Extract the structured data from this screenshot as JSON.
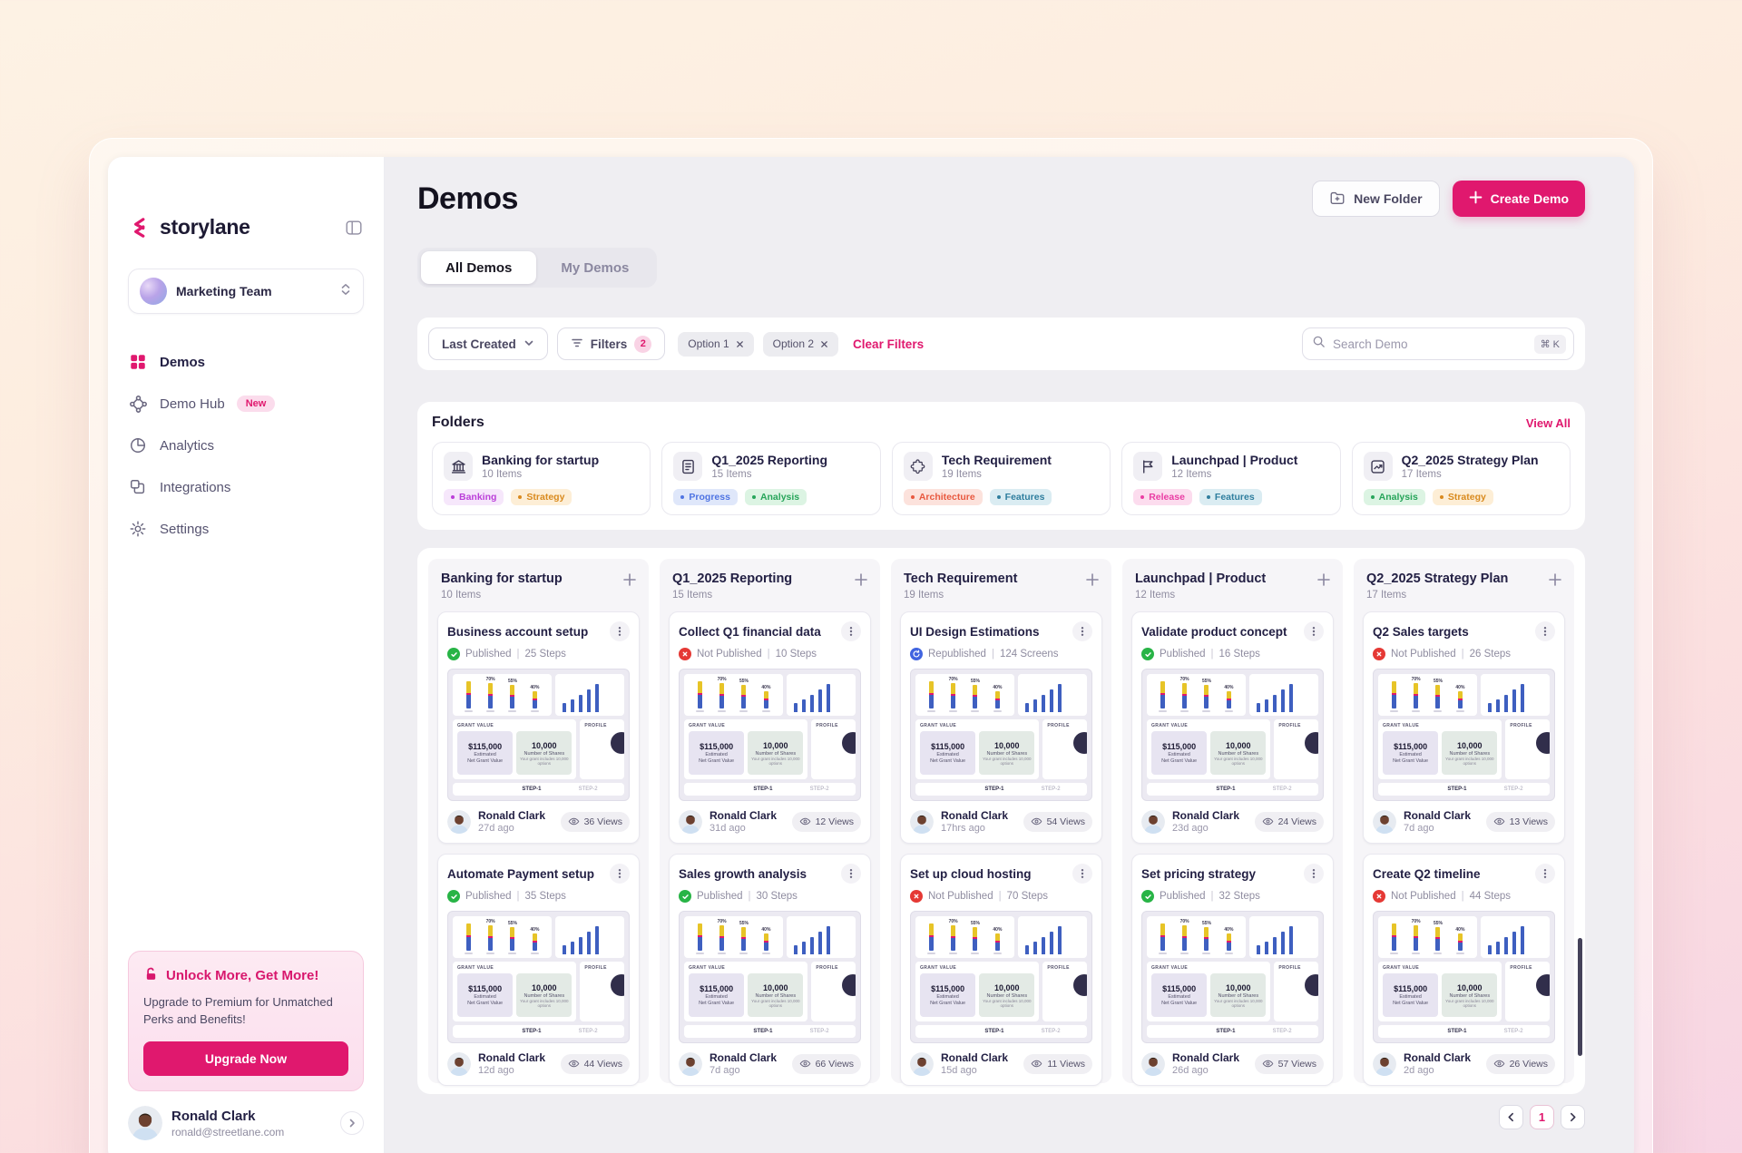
{
  "theme": {
    "accent": "#e0186e",
    "text_dark": "#232044",
    "main_bg": "#efeef2"
  },
  "ui": {
    "divider": "|"
  },
  "sidebar": {
    "logo_text": "storylane",
    "workspace": {
      "name": "Marketing Team"
    },
    "items": [
      {
        "label": "Demos",
        "icon": "grid",
        "active": true
      },
      {
        "label": "Demo Hub",
        "icon": "hub",
        "badge": "New"
      },
      {
        "label": "Analytics",
        "icon": "pie"
      },
      {
        "label": "Integrations",
        "icon": "blocks"
      },
      {
        "label": "Settings",
        "icon": "gear"
      }
    ],
    "upgrade": {
      "title": "Unlock More, Get More!",
      "body": "Upgrade to Premium for Unmatched Perks and Benefits!",
      "cta": "Upgrade Now"
    },
    "user": {
      "name": "Ronald Clark",
      "email": "ronald@streetlane.com"
    }
  },
  "header": {
    "title": "Demos",
    "new_folder": "New Folder",
    "create_demo": "Create Demo"
  },
  "tabs": [
    {
      "label": "All Demos",
      "active": true
    },
    {
      "label": "My Demos",
      "active": false
    }
  ],
  "toolbar": {
    "sort": "Last Created",
    "filters_label": "Filters",
    "filters_count": "2",
    "chips": [
      "Option 1",
      "Option 2"
    ],
    "clear": "Clear Filters",
    "search_placeholder": "Search Demo",
    "search_shortcut": "⌘ K"
  },
  "folders_section": {
    "title": "Folders",
    "view_all": "View All",
    "folders": [
      {
        "name": "Banking for startup",
        "items": "10 Items",
        "icon": "bank",
        "tags": [
          {
            "label": "Banking",
            "color": "purple"
          },
          {
            "label": "Strategy",
            "color": "amber"
          }
        ]
      },
      {
        "name": "Q1_2025 Reporting",
        "items": "15 Items",
        "icon": "report",
        "tags": [
          {
            "label": "Progress",
            "color": "blue"
          },
          {
            "label": "Analysis",
            "color": "green"
          }
        ]
      },
      {
        "name": "Tech Requirement",
        "items": "19 Items",
        "icon": "puzzle",
        "tags": [
          {
            "label": "Architecture",
            "color": "red"
          },
          {
            "label": "Features",
            "color": "teal"
          }
        ]
      },
      {
        "name": "Launchpad | Product",
        "items": "12 Items",
        "icon": "flag",
        "tags": [
          {
            "label": "Release",
            "color": "pink"
          },
          {
            "label": "Features",
            "color": "teal"
          }
        ]
      },
      {
        "name": "Q2_2025 Strategy Plan",
        "items": "17 Items",
        "icon": "chartbox",
        "tags": [
          {
            "label": "Analysis",
            "color": "green"
          },
          {
            "label": "Strategy",
            "color": "amber"
          }
        ]
      }
    ]
  },
  "board": {
    "columns": [
      {
        "name": "Banking for startup",
        "items": "10 Items",
        "cards": [
          {
            "title": "Business account setup",
            "status": "Published",
            "status_type": "published",
            "steps": "25 Steps",
            "author": "Ronald Clark",
            "time": "27d ago",
            "views": "36 Views"
          },
          {
            "title": "Automate Payment setup",
            "status": "Published",
            "status_type": "published",
            "steps": "35 Steps",
            "author": "Ronald Clark",
            "time": "12d ago",
            "views": "44 Views"
          }
        ]
      },
      {
        "name": "Q1_2025 Reporting",
        "items": "15 Items",
        "cards": [
          {
            "title": "Collect Q1 financial data",
            "status": "Not Published",
            "status_type": "unpublished",
            "steps": "10 Steps",
            "author": "Ronald Clark",
            "time": "31d ago",
            "views": "12 Views"
          },
          {
            "title": "Sales growth analysis",
            "status": "Published",
            "status_type": "published",
            "steps": "30 Steps",
            "author": "Ronald Clark",
            "time": "7d ago",
            "views": "66 Views"
          }
        ]
      },
      {
        "name": "Tech Requirement",
        "items": "19 Items",
        "cards": [
          {
            "title": "UI Design Estimations",
            "status": "Republished",
            "status_type": "republished",
            "steps": "124 Screens",
            "author": "Ronald Clark",
            "time": "17hrs ago",
            "views": "54 Views"
          },
          {
            "title": "Set up cloud hosting",
            "status": "Not Published",
            "status_type": "unpublished",
            "steps": "70 Steps",
            "author": "Ronald Clark",
            "time": "15d ago",
            "views": "11 Views"
          }
        ]
      },
      {
        "name": "Launchpad | Product",
        "items": "12 Items",
        "cards": [
          {
            "title": "Validate product concept",
            "status": "Published",
            "status_type": "published",
            "steps": "16 Steps",
            "author": "Ronald Clark",
            "time": "23d ago",
            "views": "24 Views"
          },
          {
            "title": "Set pricing strategy",
            "status": "Published",
            "status_type": "published",
            "steps": "32 Steps",
            "author": "Ronald Clark",
            "time": "26d ago",
            "views": "57 Views"
          }
        ]
      },
      {
        "name": "Q2_2025 Strategy Plan",
        "items": "17 Items",
        "cards": [
          {
            "title": "Q2 Sales targets",
            "status": "Not Published",
            "status_type": "unpublished",
            "steps": "26 Steps",
            "author": "Ronald Clark",
            "time": "7d ago",
            "views": "13 Views"
          },
          {
            "title": "Create Q2 timeline",
            "status": "Not Published",
            "status_type": "unpublished",
            "steps": "44 Steps",
            "author": "Ronald Clark",
            "time": "2d ago",
            "views": "26 Views"
          }
        ]
      }
    ]
  },
  "thumbnail": {
    "bar_labels": [
      "70%",
      "55%",
      "40%"
    ],
    "grant_label": "GRANT VALUE",
    "stat1_value": "$115,000",
    "stat1_line1": "Estimated",
    "stat1_line2": "Net Grant Value",
    "stat2_value": "10,000",
    "stat2_line1": "Number of Shares",
    "stat2_line2": "Your grant includes 10,000 options",
    "profile_label": "PROFILE",
    "step1": "STEP-1",
    "step2": "STEP-2"
  },
  "pagination": {
    "page": "1"
  }
}
